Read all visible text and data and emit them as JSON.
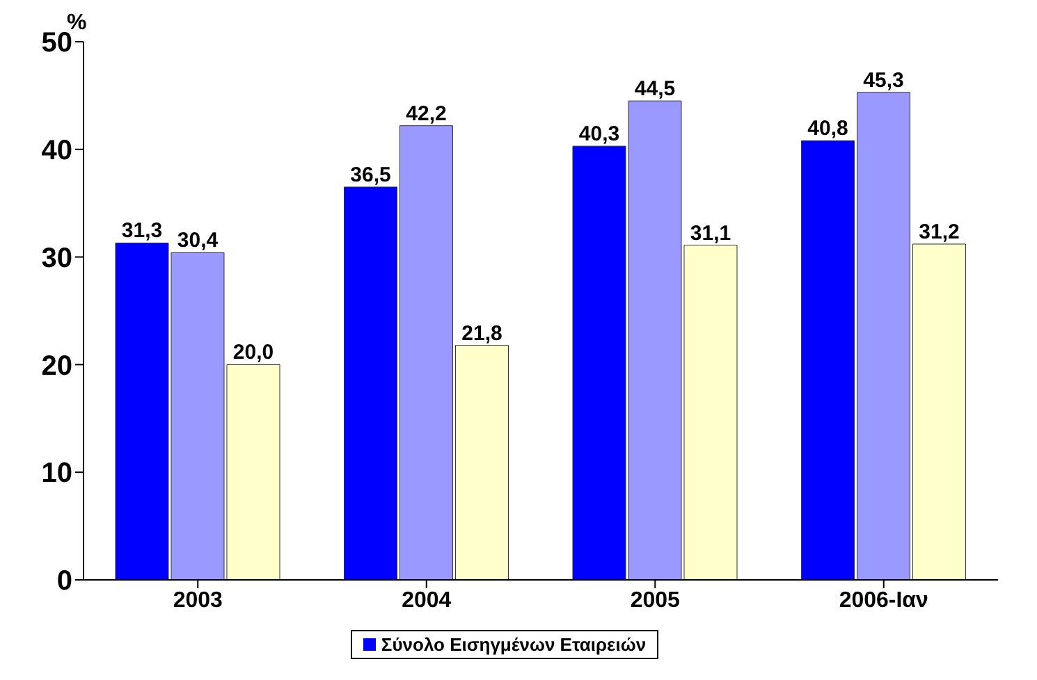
{
  "chart_data": {
    "type": "bar",
    "ylabel": "%",
    "categories": [
      "2003",
      "2004",
      "2005",
      "2006-Ιαν"
    ],
    "ylim": [
      0,
      50
    ],
    "yticks": [
      0,
      10,
      20,
      30,
      40,
      50
    ],
    "grid": false,
    "legend": "bottom",
    "series": [
      {
        "name": "Σύνολο Εισηγμένων Εταιρειών",
        "color": "#0000ff",
        "values": [
          31.3,
          36.5,
          40.3,
          40.8
        ],
        "value_labels": [
          "31,3",
          "36,5",
          "40,3",
          "40,8"
        ]
      },
      {
        "color": "#9999ff",
        "values": [
          30.4,
          42.2,
          44.5,
          45.3
        ],
        "value_labels": [
          "30,4",
          "42,2",
          "44,5",
          "45,3"
        ]
      },
      {
        "color": "#ffffcc",
        "values": [
          20.0,
          21.8,
          31.1,
          31.2
        ],
        "value_labels": [
          "20,0",
          "21,8",
          "31,1",
          "31,2"
        ]
      }
    ]
  }
}
